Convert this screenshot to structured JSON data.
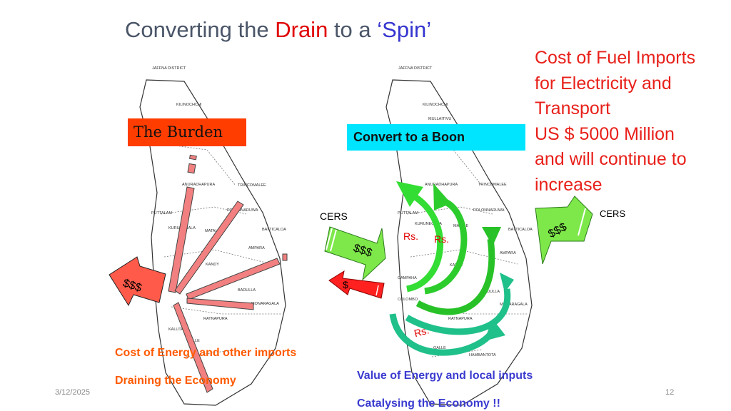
{
  "title": {
    "part1": "Converting the ",
    "drain": "Drain",
    "part2": " to a ",
    "spin": "‘Spin’"
  },
  "cost_note": [
    "Cost of Fuel Imports",
    "for Electricity and",
    "Transport",
    "US $ 5000 Million",
    "and will continue to",
    "increase"
  ],
  "cers_labels": {
    "mid": "CERS",
    "right": "CERS"
  },
  "left_map": {
    "label": "The Burden",
    "arrow_label": "$$$",
    "caption1": "Cost of Energy  and other imports",
    "caption2": "Draining the Economy",
    "districts": [
      "JAFFNA DISTRICT",
      "KILINOCHCHI",
      "ANURADHAPURA",
      "TRINCOMALEE",
      "PUTTALAM",
      "POLONNARUWA",
      "KURUNEGALA",
      "MATALE",
      "BATTICALOA",
      "AMPARA",
      "KANDY",
      "BADULLA",
      "MONARAGALA",
      "RATNAPURA",
      "KALUTARA",
      "GALLE"
    ]
  },
  "right_map": {
    "label": "Convert to a  Boon",
    "in_arrow_label": "$$$",
    "out_arrow_label": "$",
    "right_arrow_label": "$$$",
    "rs_labels": [
      "Rs.",
      "Rs.",
      "Rs."
    ],
    "caption1": "Value of Energy and local inputs",
    "caption2": "Catalysing the Economy !!",
    "districts": [
      "JAFFNA DISTRICT",
      "KILINOCHCHI",
      "MULLAITIVU",
      "ANURADHAPURA",
      "TRINCOMALEE",
      "PUTTALAM",
      "POLONNARUWA",
      "KURUNEGALA",
      "MATALE",
      "BATTICALOA",
      "AMPARA",
      "KANDY",
      "CAMPAHA",
      "BADULLA",
      "COLOMBO",
      "MONARAGALA",
      "RATNAPURA",
      "GALLE",
      "HAMBANTOTA"
    ]
  },
  "footer": {
    "date": "3/12/2025",
    "page": "12"
  },
  "colors": {
    "title": "#4a5568",
    "drain": "#e00000",
    "spin": "#3535d0",
    "note": "#e8201a",
    "burden_bg": "#ff3d00",
    "boon_bg": "#00e5ff",
    "orange_text": "#ff5a00",
    "blue_text": "#3b3bd0",
    "pink_arrow": "#f28080",
    "green": "#33dd33",
    "teal": "#1fc08a"
  }
}
